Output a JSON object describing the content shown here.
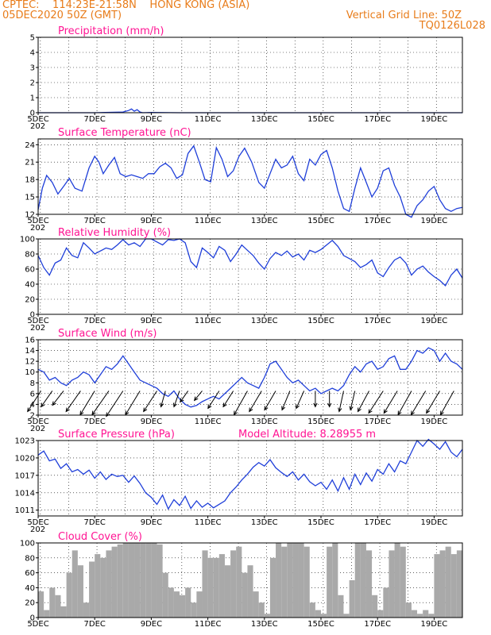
{
  "header": {
    "line1_left": "CPTEC:    114:23E-21:58N    HONG KONG (ASIA)",
    "line2_left": "05DEC2020 50Z (GMT)",
    "line2_right": "Vertical Grid Line: 50Z",
    "line3_right": "TQ0126L028"
  },
  "colors": {
    "header": "#e87c1a",
    "title": "#ff1493",
    "line": "#1f3fd9",
    "cloud": "#a9a9a9"
  },
  "x_ticks": [
    "5DEC",
    "7DEC",
    "9DEC",
    "11DEC",
    "13DEC",
    "15DEC",
    "17DEC",
    "19DEC"
  ],
  "year_fragment": "202",
  "chart_data": [
    {
      "id": "precip",
      "type": "line",
      "title": "Precipitation (mm/h)",
      "ylim": [
        0,
        5
      ],
      "yticks": [
        0,
        1,
        2,
        3,
        4,
        5
      ],
      "x_range_days": [
        5,
        20
      ],
      "series": [
        {
          "x": [
            5,
            7.0,
            8.0,
            8.1,
            8.2,
            8.3,
            8.4,
            8.5,
            8.6,
            8.7,
            9.0,
            10.0,
            12.0,
            20
          ],
          "y": [
            0,
            0,
            0.05,
            0.1,
            0.15,
            0.25,
            0.1,
            0.2,
            0.05,
            0.0,
            0.02,
            0,
            0,
            0
          ]
        }
      ]
    },
    {
      "id": "temp",
      "type": "line",
      "title": "Surface Temperature (nC)",
      "ylim": [
        12,
        25
      ],
      "yticks": [
        12,
        15,
        18,
        21,
        24
      ],
      "x_range_days": [
        5,
        20
      ],
      "series": [
        {
          "x": [
            5.0,
            5.15,
            5.3,
            5.5,
            5.7,
            5.9,
            6.1,
            6.3,
            6.55,
            6.8,
            7.0,
            7.15,
            7.3,
            7.5,
            7.7,
            7.9,
            8.1,
            8.3,
            8.5,
            8.7,
            8.9,
            9.1,
            9.3,
            9.5,
            9.7,
            9.9,
            10.1,
            10.3,
            10.5,
            10.7,
            10.9,
            11.1,
            11.3,
            11.5,
            11.7,
            11.9,
            12.1,
            12.3,
            12.55,
            12.8,
            13.0,
            13.2,
            13.4,
            13.6,
            13.8,
            14.0,
            14.2,
            14.4,
            14.6,
            14.8,
            15.0,
            15.2,
            15.4,
            15.6,
            15.8,
            16.0,
            16.2,
            16.4,
            16.6,
            16.8,
            17.0,
            17.2,
            17.4,
            17.6,
            17.8,
            18.0,
            18.2,
            18.4,
            18.6,
            18.8,
            19.0,
            19.2,
            19.4,
            19.6,
            19.8,
            20.0
          ],
          "y": [
            12.8,
            16.5,
            18.7,
            17.5,
            15.5,
            16.8,
            18.2,
            16.5,
            16.0,
            20.0,
            22.0,
            21.0,
            19.0,
            20.5,
            21.8,
            19.0,
            18.5,
            18.8,
            18.5,
            18.2,
            19.0,
            19.0,
            20.2,
            20.8,
            20.0,
            18.2,
            18.8,
            22.5,
            23.8,
            21.0,
            18.0,
            17.6,
            23.5,
            21.5,
            18.5,
            19.5,
            22.0,
            23.4,
            21.0,
            17.5,
            16.5,
            19.0,
            21.5,
            20.0,
            20.5,
            22.0,
            19.0,
            17.8,
            21.5,
            20.5,
            22.3,
            23.0,
            20.0,
            16.0,
            13.0,
            12.5,
            16.5,
            20.0,
            17.5,
            15.0,
            16.5,
            19.5,
            20.0,
            17.0,
            15.0,
            12.0,
            11.5,
            13.5,
            14.5,
            16.0,
            16.8,
            14.5,
            13.0,
            12.5,
            13.0,
            13.2
          ]
        }
      ]
    },
    {
      "id": "rh",
      "type": "line",
      "title": "Relative Humidity (%)",
      "ylim": [
        0,
        100
      ],
      "yticks": [
        0,
        20,
        40,
        60,
        80,
        100
      ],
      "x_range_days": [
        5,
        20
      ],
      "series": [
        {
          "x": [
            5.0,
            5.2,
            5.4,
            5.6,
            5.8,
            6.0,
            6.2,
            6.4,
            6.6,
            6.8,
            7.0,
            7.2,
            7.4,
            7.6,
            7.8,
            8.0,
            8.2,
            8.4,
            8.6,
            8.8,
            9.0,
            9.2,
            9.4,
            9.6,
            9.8,
            10.0,
            10.2,
            10.4,
            10.6,
            10.8,
            11.0,
            11.2,
            11.4,
            11.6,
            11.8,
            12.0,
            12.2,
            12.4,
            12.6,
            12.8,
            13.0,
            13.2,
            13.4,
            13.6,
            13.8,
            14.0,
            14.2,
            14.4,
            14.6,
            14.8,
            15.0,
            15.2,
            15.4,
            15.6,
            15.8,
            16.0,
            16.2,
            16.4,
            16.6,
            16.8,
            17.0,
            17.2,
            17.4,
            17.6,
            17.8,
            18.0,
            18.2,
            18.4,
            18.6,
            18.8,
            19.0,
            19.2,
            19.4,
            19.6,
            19.8,
            20.0
          ],
          "y": [
            78,
            62,
            52,
            68,
            72,
            88,
            78,
            75,
            95,
            88,
            80,
            84,
            88,
            86,
            92,
            99,
            92,
            95,
            90,
            100,
            100,
            96,
            92,
            99,
            98,
            100,
            95,
            70,
            62,
            88,
            82,
            75,
            90,
            85,
            70,
            80,
            92,
            85,
            78,
            68,
            60,
            74,
            82,
            78,
            84,
            76,
            80,
            72,
            85,
            82,
            86,
            92,
            98,
            90,
            78,
            74,
            70,
            62,
            66,
            72,
            55,
            50,
            62,
            72,
            76,
            68,
            52,
            60,
            64,
            56,
            50,
            45,
            38,
            52,
            60,
            48
          ]
        }
      ]
    },
    {
      "id": "wind",
      "type": "line",
      "title": "Surface Wind (m/s)",
      "ylim": [
        2,
        16
      ],
      "yticks": [
        2,
        4,
        6,
        8,
        10,
        12,
        14,
        16
      ],
      "x_range_days": [
        5,
        20
      ],
      "series": [
        {
          "x": [
            5.0,
            5.2,
            5.4,
            5.6,
            5.8,
            6.0,
            6.2,
            6.4,
            6.6,
            6.8,
            7.0,
            7.2,
            7.4,
            7.6,
            7.8,
            8.0,
            8.2,
            8.4,
            8.6,
            8.8,
            9.0,
            9.2,
            9.4,
            9.6,
            9.8,
            10.0,
            10.2,
            10.4,
            10.6,
            10.8,
            11.0,
            11.2,
            11.4,
            11.6,
            11.8,
            12.0,
            12.2,
            12.4,
            12.6,
            12.8,
            13.0,
            13.2,
            13.4,
            13.6,
            13.8,
            14.0,
            14.2,
            14.4,
            14.6,
            14.8,
            15.0,
            15.2,
            15.4,
            15.6,
            15.8,
            16.0,
            16.2,
            16.4,
            16.6,
            16.8,
            17.0,
            17.2,
            17.4,
            17.6,
            17.8,
            18.0,
            18.2,
            18.4,
            18.6,
            18.8,
            19.0,
            19.2,
            19.4,
            19.6,
            19.8,
            20.0
          ],
          "y": [
            10.5,
            10.0,
            8.5,
            9.0,
            8.0,
            7.5,
            8.5,
            9.0,
            10.0,
            9.5,
            8.0,
            9.5,
            11.0,
            10.5,
            11.5,
            13.0,
            11.5,
            10.0,
            8.5,
            8.0,
            7.5,
            7.0,
            6.0,
            5.5,
            6.5,
            5.0,
            4.0,
            3.5,
            3.8,
            4.5,
            5.0,
            5.5,
            5.0,
            6.0,
            7.0,
            8.0,
            9.0,
            8.0,
            7.5,
            7.0,
            9.0,
            11.5,
            12.0,
            10.5,
            9.0,
            8.0,
            8.5,
            7.5,
            6.5,
            7.0,
            6.0,
            6.5,
            7.0,
            6.5,
            7.5,
            9.5,
            11.0,
            10.0,
            11.5,
            12.0,
            10.5,
            11.0,
            12.5,
            13.0,
            10.5,
            10.5,
            12.0,
            14.0,
            13.5,
            14.5,
            14.0,
            12.0,
            13.5,
            12.0,
            11.5,
            10.5
          ]
        }
      ],
      "arrows": [
        {
          "x": 5.1,
          "u": -1.2,
          "v": -1.3
        },
        {
          "x": 5.5,
          "u": -1.0,
          "v": -1.0
        },
        {
          "x": 5.9,
          "u": -1.0,
          "v": -0.9
        },
        {
          "x": 6.5,
          "u": -1.3,
          "v": -1.3
        },
        {
          "x": 7.0,
          "u": -1.3,
          "v": -1.5
        },
        {
          "x": 7.5,
          "u": -1.5,
          "v": -1.5
        },
        {
          "x": 8.0,
          "u": -1.5,
          "v": -1.6
        },
        {
          "x": 8.6,
          "u": -1.3,
          "v": -1.5
        },
        {
          "x": 9.2,
          "u": -1.2,
          "v": -1.3
        },
        {
          "x": 9.5,
          "u": -0.4,
          "v": -1.0
        },
        {
          "x": 10.0,
          "u": -0.5,
          "v": -1.0
        },
        {
          "x": 10.3,
          "u": -0.7,
          "v": -0.7
        },
        {
          "x": 10.8,
          "u": -0.7,
          "v": -0.6
        },
        {
          "x": 11.4,
          "u": -1.0,
          "v": -1.1
        },
        {
          "x": 11.9,
          "u": -0.9,
          "v": -1.0
        },
        {
          "x": 12.4,
          "u": -1.2,
          "v": -1.5
        },
        {
          "x": 12.9,
          "u": -1.1,
          "v": -1.3
        },
        {
          "x": 13.4,
          "u": -1.0,
          "v": -1.2
        },
        {
          "x": 13.9,
          "u": -0.7,
          "v": -1.2
        },
        {
          "x": 14.4,
          "u": -0.7,
          "v": -1.1
        },
        {
          "x": 14.8,
          "u": 0.0,
          "v": -1.0
        },
        {
          "x": 15.3,
          "u": 0.0,
          "v": -1.0
        },
        {
          "x": 15.8,
          "u": -0.4,
          "v": -1.3
        },
        {
          "x": 16.2,
          "u": -0.4,
          "v": -1.2
        },
        {
          "x": 16.7,
          "u": -1.0,
          "v": -1.3
        },
        {
          "x": 17.2,
          "u": -1.3,
          "v": -1.4
        },
        {
          "x": 17.7,
          "u": -1.2,
          "v": -1.4
        },
        {
          "x": 18.2,
          "u": -1.2,
          "v": -1.5
        },
        {
          "x": 18.7,
          "u": -1.3,
          "v": -1.5
        },
        {
          "x": 19.2,
          "u": -1.2,
          "v": -1.4
        },
        {
          "x": 19.7,
          "u": -1.2,
          "v": -1.5
        }
      ]
    },
    {
      "id": "press",
      "type": "line",
      "title": "Surface Pressure (hPa)",
      "extra_label": "Model Altitude: 8.28955 m",
      "ylim": [
        1010,
        1023
      ],
      "yticks": [
        1011,
        1014,
        1017,
        1020,
        1023
      ],
      "x_range_days": [
        5,
        20
      ],
      "series": [
        {
          "x": [
            5.0,
            5.2,
            5.4,
            5.6,
            5.8,
            6.0,
            6.2,
            6.4,
            6.6,
            6.8,
            7.0,
            7.2,
            7.4,
            7.6,
            7.8,
            8.0,
            8.2,
            8.4,
            8.6,
            8.8,
            9.0,
            9.2,
            9.4,
            9.6,
            9.8,
            10.0,
            10.2,
            10.4,
            10.6,
            10.8,
            11.0,
            11.2,
            11.4,
            11.6,
            11.8,
            12.0,
            12.2,
            12.4,
            12.6,
            12.8,
            13.0,
            13.2,
            13.4,
            13.6,
            13.8,
            14.0,
            14.2,
            14.4,
            14.6,
            14.8,
            15.0,
            15.2,
            15.4,
            15.6,
            15.8,
            16.0,
            16.2,
            16.4,
            16.6,
            16.8,
            17.0,
            17.2,
            17.4,
            17.6,
            17.8,
            18.0,
            18.2,
            18.4,
            18.6,
            18.8,
            19.0,
            19.2,
            19.4,
            19.6,
            19.8,
            20.0
          ],
          "y": [
            1020.5,
            1021.2,
            1019.5,
            1019.8,
            1018.2,
            1019.0,
            1017.6,
            1018.0,
            1017.2,
            1017.9,
            1016.5,
            1017.6,
            1016.3,
            1017.2,
            1016.8,
            1017.0,
            1015.8,
            1016.9,
            1015.6,
            1014.0,
            1013.2,
            1012.0,
            1013.6,
            1011.2,
            1012.8,
            1011.8,
            1013.4,
            1011.3,
            1012.6,
            1011.5,
            1012.2,
            1011.4,
            1012.0,
            1012.6,
            1014.0,
            1015.0,
            1016.2,
            1017.2,
            1018.4,
            1019.2,
            1018.6,
            1019.7,
            1018.3,
            1017.5,
            1016.8,
            1017.6,
            1016.2,
            1017.2,
            1015.9,
            1015.2,
            1015.8,
            1014.6,
            1016.2,
            1014.3,
            1016.6,
            1014.6,
            1017.2,
            1015.4,
            1017.4,
            1016.0,
            1018.0,
            1017.2,
            1019.0,
            1017.6,
            1019.5,
            1019.0,
            1021.0,
            1023.0,
            1022.0,
            1023.2,
            1022.4,
            1021.5,
            1022.8,
            1021.0,
            1020.2,
            1021.5
          ]
        }
      ]
    },
    {
      "id": "cloud",
      "type": "area",
      "title": "Cloud Cover (%)",
      "ylim": [
        0,
        100
      ],
      "yticks": [
        0,
        20,
        40,
        60,
        80,
        100
      ],
      "x_range_days": [
        5,
        20
      ],
      "series": [
        {
          "x": [
            5.0,
            5.2,
            5.4,
            5.6,
            5.8,
            6.0,
            6.2,
            6.4,
            6.6,
            6.8,
            7.0,
            7.2,
            7.4,
            7.6,
            7.8,
            8.0,
            8.2,
            8.4,
            8.6,
            8.8,
            9.0,
            9.2,
            9.4,
            9.6,
            9.8,
            10.0,
            10.2,
            10.4,
            10.6,
            10.8,
            11.0,
            11.2,
            11.4,
            11.6,
            11.8,
            12.0,
            12.2,
            12.4,
            12.6,
            12.8,
            13.0,
            13.2,
            13.4,
            13.6,
            13.8,
            14.0,
            14.2,
            14.4,
            14.6,
            14.8,
            15.0,
            15.2,
            15.4,
            15.6,
            15.8,
            16.0,
            16.2,
            16.4,
            16.6,
            16.8,
            17.0,
            17.2,
            17.4,
            17.6,
            17.8,
            18.0,
            18.2,
            18.4,
            18.6,
            18.8,
            19.0,
            19.2,
            19.4,
            19.6,
            19.8,
            20.0
          ],
          "y": [
            35,
            10,
            40,
            30,
            15,
            60,
            90,
            70,
            20,
            75,
            85,
            80,
            90,
            95,
            98,
            100,
            100,
            100,
            100,
            100,
            100,
            98,
            60,
            40,
            35,
            30,
            40,
            20,
            35,
            90,
            80,
            80,
            85,
            70,
            90,
            95,
            60,
            70,
            35,
            20,
            5,
            80,
            100,
            95,
            100,
            100,
            100,
            95,
            20,
            10,
            5,
            95,
            100,
            30,
            5,
            50,
            100,
            100,
            90,
            30,
            10,
            40,
            90,
            100,
            95,
            20,
            10,
            5,
            10,
            5,
            85,
            90,
            95,
            85,
            90,
            100
          ]
        }
      ]
    }
  ]
}
